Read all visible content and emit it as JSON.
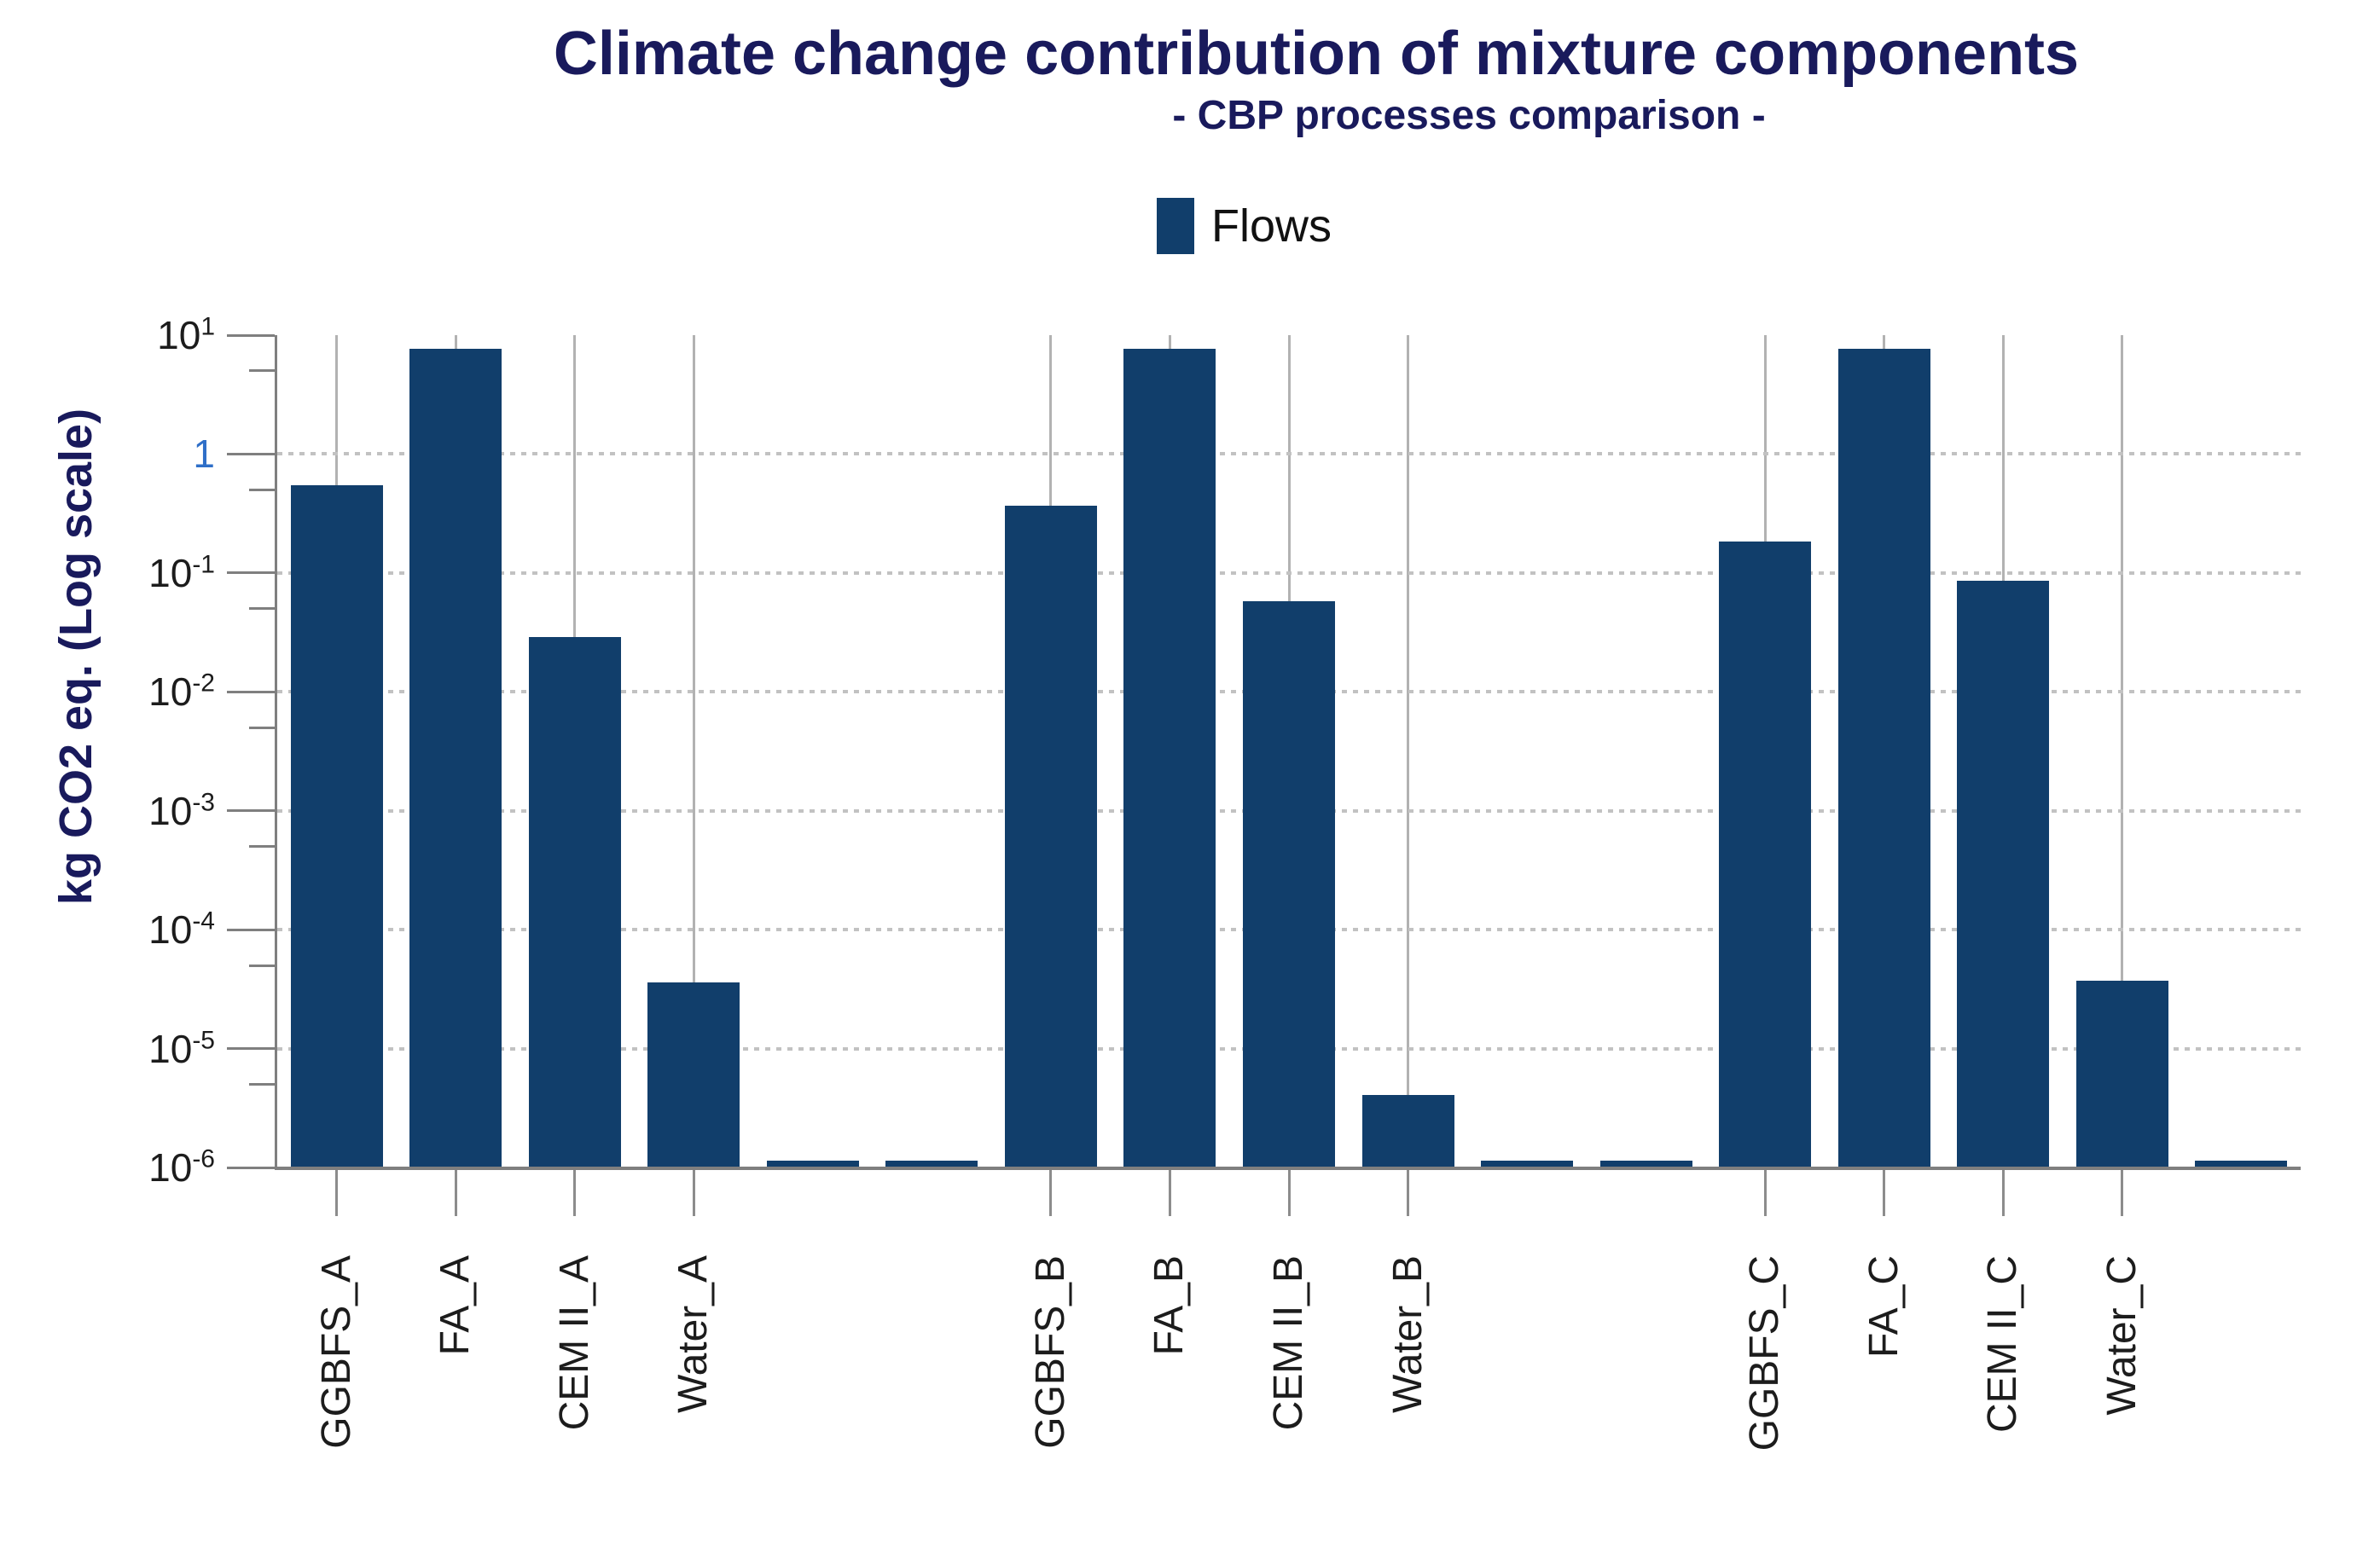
{
  "title": "Climate change contribution of mixture components",
  "subtitle": "- CBP processes comparison -",
  "legend": {
    "label": "Flows"
  },
  "y_axis": {
    "label": "kg CO2 eq. (Log scale)",
    "ticks": [
      {
        "main": "10",
        "sup": "1",
        "value": 10
      },
      {
        "main": "1",
        "sup": "",
        "value": 1,
        "special_color": true
      },
      {
        "main": "10",
        "sup": "-1",
        "value": 0.1
      },
      {
        "main": "10",
        "sup": "-2",
        "value": 0.01
      },
      {
        "main": "10",
        "sup": "-3",
        "value": 0.001
      },
      {
        "main": "10",
        "sup": "-4",
        "value": 0.0001
      },
      {
        "main": "10",
        "sup": "-5",
        "value": 1e-05
      },
      {
        "main": "10",
        "sup": "-6",
        "value": 1e-06
      }
    ],
    "minor_tick_values": [
      5,
      0.5,
      0.05,
      0.005,
      0.0005,
      5e-05,
      5e-06
    ],
    "gridline_values": [
      1,
      0.1,
      0.01,
      0.001,
      0.0001,
      1e-05
    ]
  },
  "chart_data": {
    "type": "bar",
    "title": "Climate change contribution of mixture components",
    "subtitle": "- CBP processes comparison -",
    "ylabel": "kg CO2 eq. (Log scale)",
    "y_scale": "log",
    "ylim": [
      1e-06,
      10
    ],
    "grid": "dotted horizontal decade lines",
    "legend_position": "top-center",
    "series_name": "Flows",
    "bars": [
      {
        "label": "GGBFS_A",
        "value": 0.55
      },
      {
        "label": "FA_A",
        "value": 7.7
      },
      {
        "label": "CEM II_A",
        "value": 0.029
      },
      {
        "label": "Water_A",
        "value": 3.6e-05
      },
      {
        "label": "",
        "value": 1.15e-06
      },
      {
        "label": "",
        "value": 1.15e-06
      },
      {
        "label": "GGBFS_B",
        "value": 0.37
      },
      {
        "label": "FA_B",
        "value": 7.7
      },
      {
        "label": "CEM II_B",
        "value": 0.058
      },
      {
        "label": "Water_B",
        "value": 4.1e-06
      },
      {
        "label": "",
        "value": 1.15e-06
      },
      {
        "label": "",
        "value": 1.15e-06
      },
      {
        "label": "GGBFS_C",
        "value": 0.185
      },
      {
        "label": "FA_C",
        "value": 7.7
      },
      {
        "label": "CEM II_C",
        "value": 0.086
      },
      {
        "label": "Water_C",
        "value": 3.7e-05
      },
      {
        "label": "",
        "value": 1.15e-06
      }
    ]
  },
  "colors": {
    "bar": "#113e6b",
    "heading": "#191a5c",
    "legend_text": "#111111",
    "axis": "#7f7f7f",
    "slot_line": "#b2b2b2",
    "grid_dot": "#c2c2c2",
    "tick_text": "#1c1c1c",
    "tick_one": "#2f6fc8",
    "below_tick": "#8c8c8c"
  }
}
